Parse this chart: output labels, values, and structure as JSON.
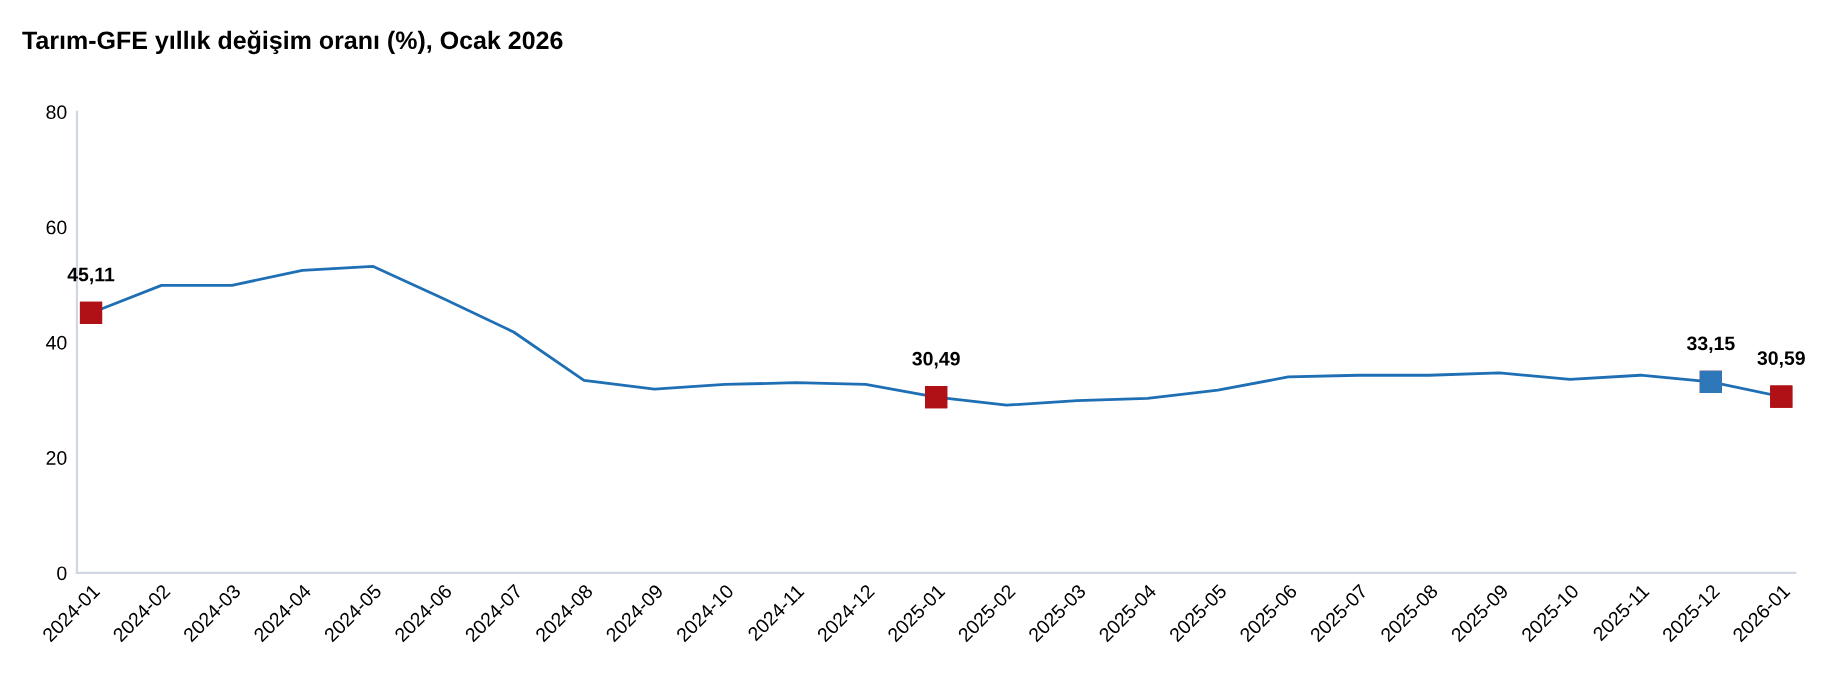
{
  "chart_data": {
    "type": "line",
    "title": "Tarım-GFE yıllık değişim oranı (%), Ocak 2026",
    "categories": [
      "2024-01",
      "2024-02",
      "2024-03",
      "2024-04",
      "2024-05",
      "2024-06",
      "2024-07",
      "2024-08",
      "2024-09",
      "2024-10",
      "2024-11",
      "2024-12",
      "2025-01",
      "2025-02",
      "2025-03",
      "2025-04",
      "2025-05",
      "2025-06",
      "2025-07",
      "2025-08",
      "2025-09",
      "2025-10",
      "2025-11",
      "2025-12",
      "2026-01"
    ],
    "series": [
      {
        "color": "#1f6fb4",
        "values": [
          45.11,
          49.9,
          49.9,
          52.5,
          53.2,
          47.6,
          41.8,
          33.4,
          31.9,
          32.7,
          33.0,
          32.7,
          30.49,
          29.1,
          29.9,
          30.3,
          31.7,
          34.0,
          34.3,
          34.3,
          34.7,
          33.6,
          34.3,
          33.15,
          30.59
        ],
        "colors": [
          "#b01116",
          null,
          null,
          null,
          null,
          null,
          null,
          null,
          null,
          null,
          null,
          null,
          "#b01116",
          null,
          null,
          null,
          null,
          null,
          null,
          null,
          null,
          null,
          null,
          "#2e78b9",
          "#b01116"
        ],
        "value_labels": [
          "45,11",
          null,
          null,
          null,
          null,
          null,
          null,
          null,
          null,
          null,
          null,
          null,
          "30,49",
          null,
          null,
          null,
          null,
          null,
          null,
          null,
          null,
          null,
          null,
          "33,15",
          "30,59"
        ]
      }
    ],
    "line_style": "solid",
    "ylim": [
      0,
      80
    ],
    "yticks": [
      0,
      20,
      40,
      60,
      80
    ],
    "grid": false,
    "legend": false
  }
}
